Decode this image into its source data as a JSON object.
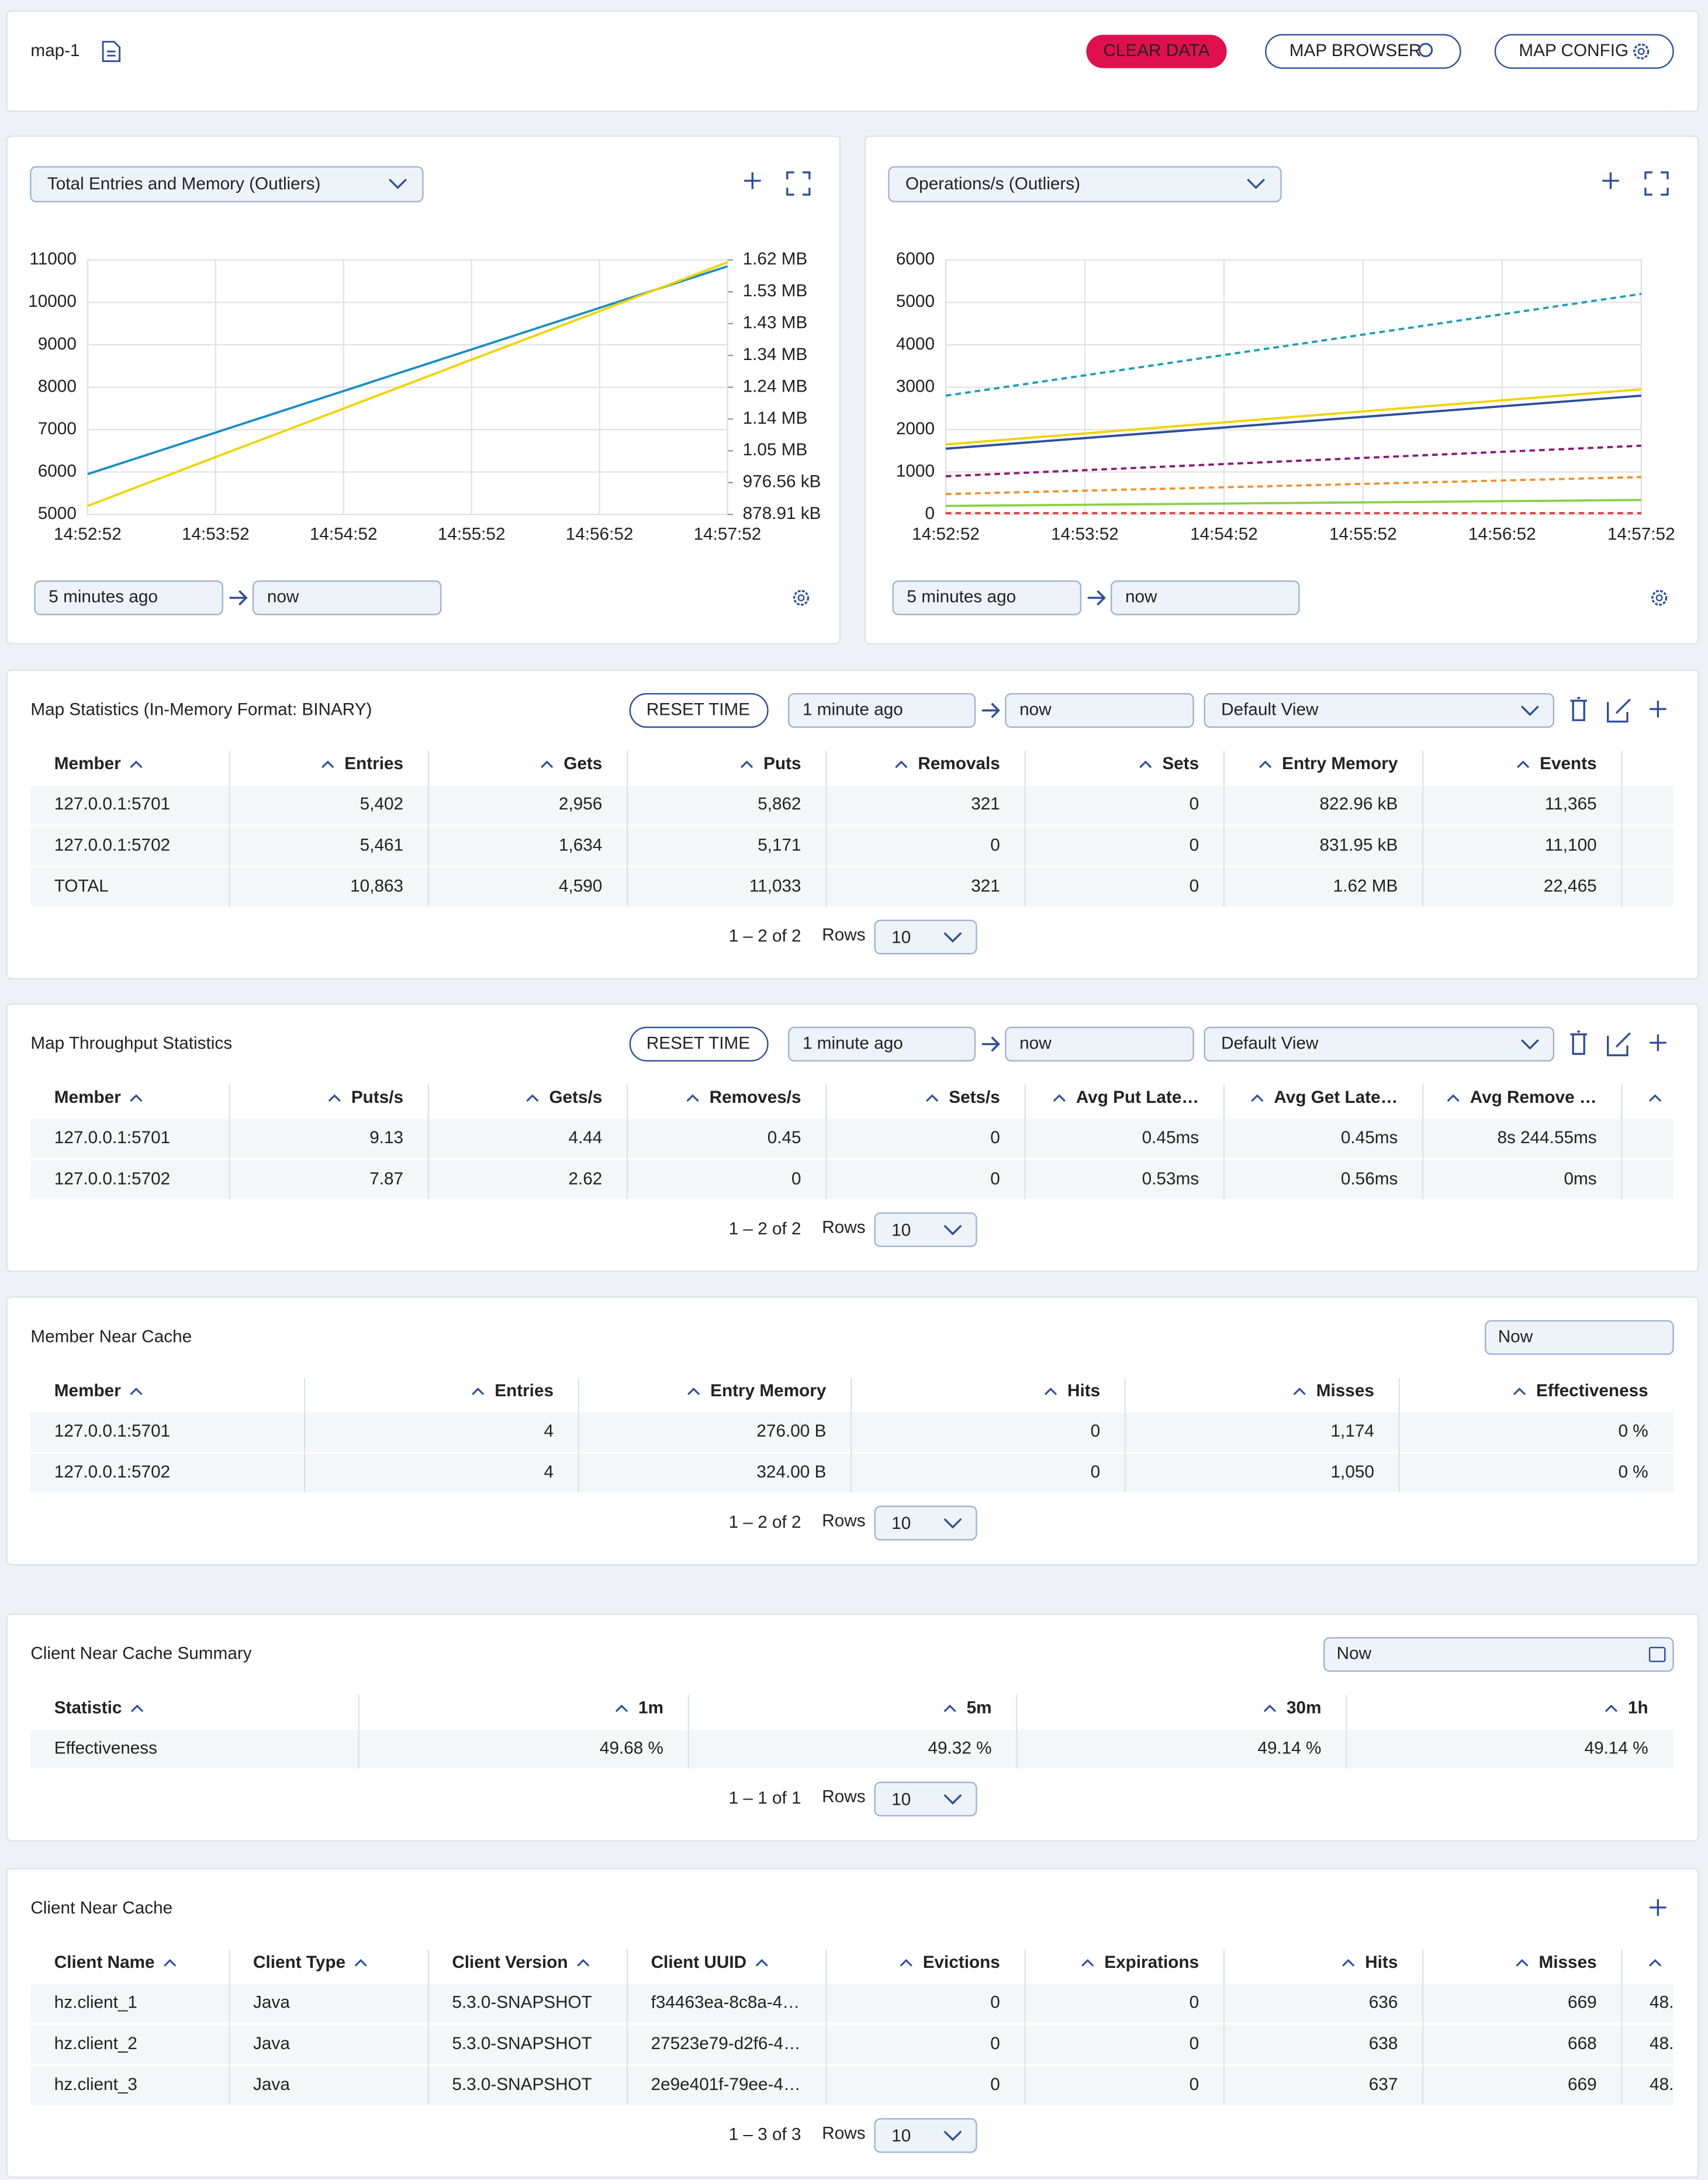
{
  "header": {
    "title": "map-1",
    "buttons": [
      "CLEAR DATA",
      "MAP BROWSER",
      "MAP CONFIG"
    ]
  },
  "charts": [
    {
      "type": "line",
      "selector": "Total Entries and Memory (Outliers)",
      "from": "5 minutes ago",
      "to": "now",
      "x": [
        "14:52:52",
        "14:53:52",
        "14:54:52",
        "14:55:52",
        "14:56:52",
        "14:57:52"
      ],
      "ylim": [
        5000,
        11000
      ],
      "yticks": [
        5000,
        6000,
        7000,
        8000,
        9000,
        10000,
        11000
      ],
      "y2lim": [
        878.91,
        1660.16
      ],
      "y2ticks": [
        {
          "value": 878.91,
          "label": "878.91 kB"
        },
        {
          "value": 976.56,
          "label": "976.56 kB"
        },
        {
          "value": 1074.22,
          "label": "1.05 MB"
        },
        {
          "value": 1171.88,
          "label": "1.14 MB"
        },
        {
          "value": 1269.53,
          "label": "1.24 MB"
        },
        {
          "value": 1367.19,
          "label": "1.34 MB"
        },
        {
          "value": 1464.84,
          "label": "1.43 MB"
        },
        {
          "value": 1562.5,
          "label": "1.53 MB"
        },
        {
          "value": 1660.16,
          "label": "1.62 MB"
        }
      ],
      "grid": true,
      "series": [
        {
          "color": "#1a8fc4",
          "values": [
            5950,
            6930,
            7910,
            8890,
            9870,
            10850
          ]
        },
        {
          "color": "#f0d400",
          "axis": "y2",
          "values": [
            905,
            1055,
            1204,
            1354,
            1503,
            1653
          ]
        }
      ]
    },
    {
      "type": "line",
      "selector": "Operations/s (Outliers)",
      "from": "5 minutes ago",
      "to": "now",
      "x": [
        "14:52:52",
        "14:53:52",
        "14:54:52",
        "14:55:52",
        "14:56:52",
        "14:57:52"
      ],
      "ylim": [
        0,
        6000
      ],
      "yticks": [
        0,
        1000,
        2000,
        3000,
        4000,
        5000,
        6000
      ],
      "grid": true,
      "series": [
        {
          "color": "#1aa0b8",
          "dashed": true,
          "values": [
            2800,
            3280,
            3760,
            4240,
            4720,
            5200
          ]
        },
        {
          "color": "#f0d400",
          "values": [
            1650,
            1910,
            2170,
            2430,
            2690,
            2950
          ]
        },
        {
          "color": "#2d4e9c",
          "values": [
            1550,
            1800,
            2050,
            2300,
            2550,
            2800
          ]
        },
        {
          "color": "#8a1a7a",
          "dashed": true,
          "values": [
            900,
            1044,
            1188,
            1332,
            1476,
            1620
          ]
        },
        {
          "color": "#f0922a",
          "dashed": true,
          "values": [
            480,
            560,
            640,
            720,
            800,
            880
          ]
        },
        {
          "color": "#8ad04a",
          "values": [
            200,
            228,
            256,
            284,
            312,
            340
          ]
        },
        {
          "color": "#e04040",
          "dashed": true,
          "values": [
            30,
            30,
            30,
            30,
            30,
            30
          ]
        }
      ]
    }
  ],
  "tables": [
    {
      "title": "Map Statistics (In-Memory Format: BINARY)",
      "controls": {
        "reset": "RESET TIME",
        "from": "1 minute ago",
        "to": "now",
        "view": "Default View"
      },
      "columns": [
        "Member",
        "Entries",
        "Gets",
        "Puts",
        "Removals",
        "Sets",
        "Entry Memory",
        "Events"
      ],
      "rows": [
        [
          "127.0.0.1:5701",
          "5,402",
          "2,956",
          "5,862",
          "321",
          "0",
          "822.96 kB",
          "11,365"
        ],
        [
          "127.0.0.1:5702",
          "5,461",
          "1,634",
          "5,171",
          "0",
          "0",
          "831.95 kB",
          "11,100"
        ],
        [
          "TOTAL",
          "10,863",
          "4,590",
          "11,033",
          "321",
          "0",
          "1.62 MB",
          "22,465"
        ]
      ],
      "pagination": {
        "range": "1 – 2 of 2",
        "rows_label": "Rows",
        "rows_value": "10"
      }
    },
    {
      "title": "Map Throughput Statistics",
      "controls": {
        "reset": "RESET TIME",
        "from": "1 minute ago",
        "to": "now",
        "view": "Default View"
      },
      "columns": [
        "Member",
        "Puts/s",
        "Gets/s",
        "Removes/s",
        "Sets/s",
        "Avg Put Late…",
        "Avg Get Late…",
        "Avg Remove …"
      ],
      "rows": [
        [
          "127.0.0.1:5701",
          "9.13",
          "4.44",
          "0.45",
          "0",
          "0.45ms",
          "0.45ms",
          "8s 244.55ms"
        ],
        [
          "127.0.0.1:5702",
          "7.87",
          "2.62",
          "0",
          "0",
          "0.53ms",
          "0.56ms",
          "0ms"
        ]
      ],
      "pagination": {
        "range": "1 – 2 of 2",
        "rows_label": "Rows",
        "rows_value": "10"
      }
    },
    {
      "title": "Member Near Cache",
      "controls": {
        "time": "Now"
      },
      "columns": [
        "Member",
        "Entries",
        "Entry Memory",
        "Hits",
        "Misses",
        "Effectiveness"
      ],
      "rows": [
        [
          "127.0.0.1:5701",
          "4",
          "276.00 B",
          "0",
          "1,174",
          "0 %"
        ],
        [
          "127.0.0.1:5702",
          "4",
          "324.00 B",
          "0",
          "1,050",
          "0 %"
        ]
      ],
      "pagination": {
        "range": "1 – 2 of 2",
        "rows_label": "Rows",
        "rows_value": "10"
      }
    },
    {
      "title": "Client Near Cache Summary",
      "controls": {
        "time": "Now"
      },
      "columns": [
        "Statistic",
        "1m",
        "5m",
        "30m",
        "1h"
      ],
      "rows": [
        [
          "Effectiveness",
          "49.68 %",
          "49.32 %",
          "49.14 %",
          "49.14 %"
        ]
      ],
      "pagination": {
        "range": "1 – 1 of 1",
        "rows_label": "Rows",
        "rows_value": "10"
      }
    },
    {
      "title": "Client Near Cache",
      "controls": {},
      "columns": [
        "Client Name",
        "Client Type",
        "Client Version",
        "Client UUID",
        "Evictions",
        "Expirations",
        "Hits",
        "Misses",
        null
      ],
      "rows": [
        [
          "hz.client_1",
          "Java",
          "5.3.0-SNAPSHOT",
          "f34463ea-8c8a-4…",
          "0",
          "0",
          "636",
          "669",
          "48."
        ],
        [
          "hz.client_2",
          "Java",
          "5.3.0-SNAPSHOT",
          "27523e79-d2f6-4…",
          "0",
          "0",
          "638",
          "668",
          "48."
        ],
        [
          "hz.client_3",
          "Java",
          "5.3.0-SNAPSHOT",
          "2e9e401f-79ee-4…",
          "0",
          "0",
          "637",
          "669",
          "48."
        ]
      ],
      "pagination": {
        "range": "1 – 3 of 3",
        "rows_label": "Rows",
        "rows_value": "10"
      }
    }
  ]
}
